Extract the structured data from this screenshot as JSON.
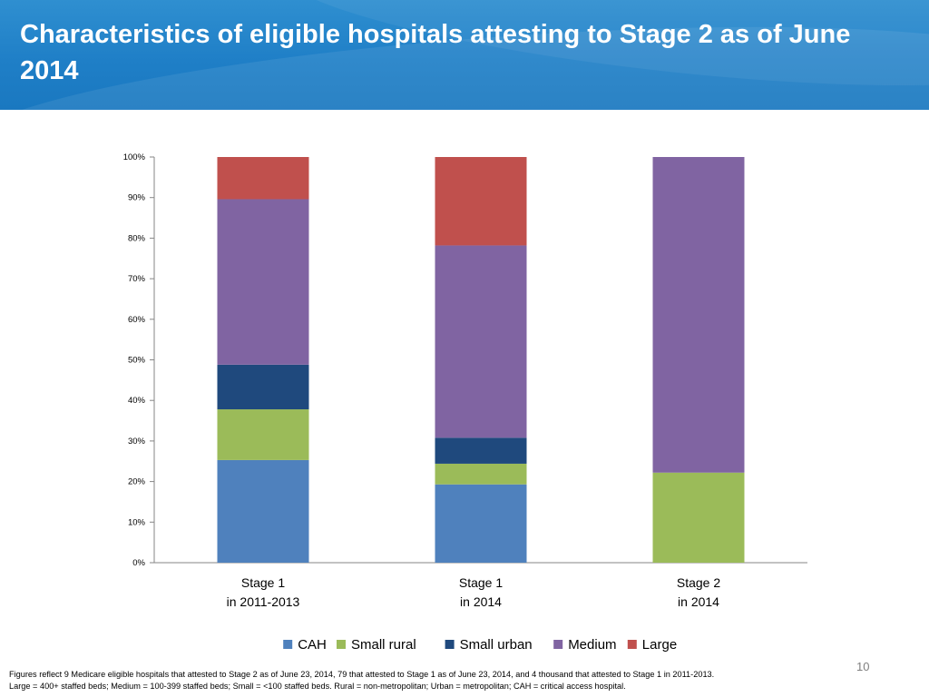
{
  "slide": {
    "title": "Characteristics of eligible hospitals attesting to Stage 2 as of June 2014",
    "page_number": "10",
    "footnote_line1": "Figures reflect  9 Medicare eligible hospitals that attested to Stage 2 as of June 23, 2014, 79 that attested to Stage 1 as of June 23, 2014, and 4 thousand that attested to Stage 1 in 2011-2013.",
    "footnote_line2": "Large = 400+ staffed beds; Medium = 100-399 staffed beds; Small = <100 staffed beds. Rural = non-metropolitan; Urban = metropolitan; CAH = critical access hospital."
  },
  "chart_data": {
    "type": "bar",
    "stacked": true,
    "percent_stacked": true,
    "categories": [
      [
        "Stage 1",
        "in 2011-2013"
      ],
      [
        "Stage 1",
        "in 2014"
      ],
      [
        "Stage 2",
        "in 2014"
      ]
    ],
    "series": [
      {
        "name": "CAH",
        "color": "#4f81bd",
        "values": [
          25.3,
          19.3,
          0
        ]
      },
      {
        "name": "Small rural",
        "color": "#9bbb59",
        "values": [
          12.5,
          5.1,
          22.2
        ]
      },
      {
        "name": "Small urban",
        "color": "#1f497d",
        "values": [
          11.0,
          6.4,
          0
        ]
      },
      {
        "name": "Medium",
        "color": "#8064a2",
        "values": [
          40.8,
          47.4,
          77.8
        ]
      },
      {
        "name": "Large",
        "color": "#c0504d",
        "values": [
          10.4,
          21.8,
          0
        ]
      }
    ],
    "y_ticks": [
      "0%",
      "10%",
      "20%",
      "30%",
      "40%",
      "50%",
      "60%",
      "70%",
      "80%",
      "90%",
      "100%"
    ],
    "ylim": [
      0,
      100
    ],
    "grid": false,
    "legend_position": "bottom"
  }
}
